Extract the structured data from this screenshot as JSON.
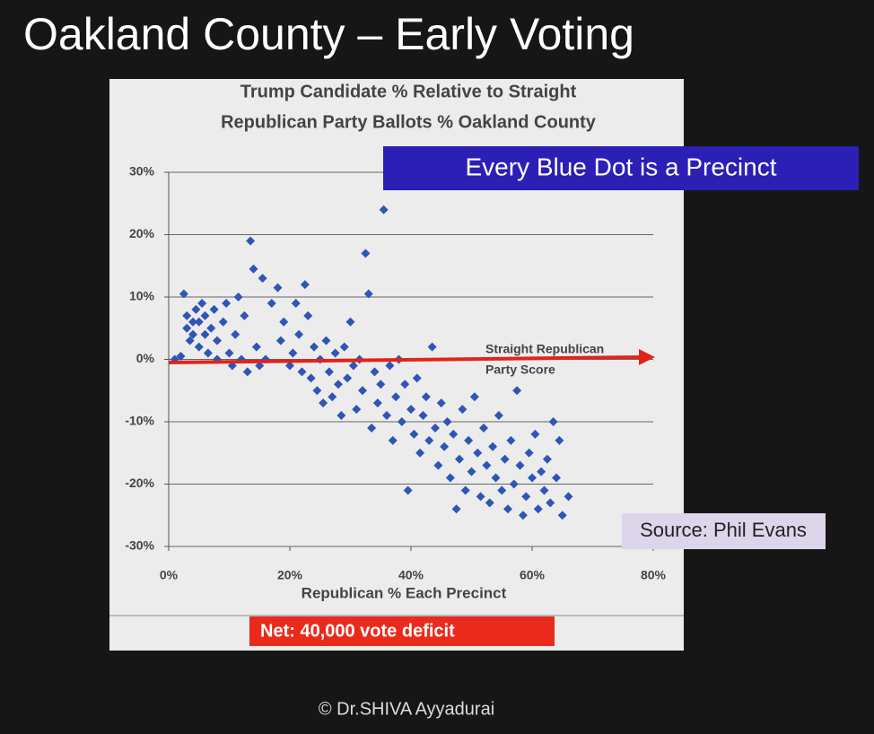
{
  "slide_title": "Oakland County – Early Voting",
  "callout": "Every Blue Dot is a Precinct",
  "source": "Source: Phil Evans",
  "net": "Net:  40,000 vote deficit",
  "footer": "© Dr.SHIVA Ayyadurai",
  "chart_data": {
    "type": "scatter",
    "title": [
      "Trump Candidate % Relative to Straight",
      "Republican Party Ballots % Oakland County"
    ],
    "x_label": "Republican % Each Precinct",
    "arrow_label": [
      "Straight Republican",
      "Party Score"
    ],
    "color": "#2f55b5",
    "grid": true,
    "xlim": [
      0,
      80
    ],
    "xticks": [
      {
        "value": 0,
        "label": "0%"
      },
      {
        "value": 20,
        "label": "20%"
      },
      {
        "value": 40,
        "label": "40%"
      },
      {
        "value": 60,
        "label": "60%"
      },
      {
        "value": 80,
        "label": "80%"
      }
    ],
    "ylim": [
      -30,
      30
    ],
    "yticks": [
      {
        "value": -30,
        "label": "-30%"
      },
      {
        "value": -20,
        "label": "-20%"
      },
      {
        "value": -10,
        "label": "-10%"
      },
      {
        "value": 0,
        "label": "0%"
      },
      {
        "value": 10,
        "label": "10%"
      },
      {
        "value": 20,
        "label": "20%"
      },
      {
        "value": 30,
        "label": "30%"
      }
    ],
    "x": [
      1,
      2,
      2.5,
      3,
      3,
      3.5,
      4,
      4,
      4.5,
      5,
      5,
      5.5,
      6,
      6,
      6.5,
      7,
      7.5,
      8,
      8,
      9,
      9.5,
      10,
      10.5,
      11,
      11.5,
      12,
      12.5,
      13,
      13.5,
      14,
      14.5,
      15,
      15.5,
      16,
      17,
      18,
      18.5,
      19,
      20,
      20.5,
      21,
      21.5,
      22,
      22.5,
      23,
      23.5,
      24,
      24.5,
      25,
      25.5,
      26,
      26.5,
      27,
      27.5,
      28,
      28.5,
      29,
      29.5,
      30,
      30.5,
      31,
      31.5,
      32,
      32.5,
      33,
      33.5,
      34,
      34.5,
      35,
      35.5,
      36,
      36.5,
      37,
      37.5,
      38,
      38.5,
      39,
      39.5,
      40,
      40.5,
      41,
      41.5,
      42,
      42.5,
      43,
      43.5,
      44,
      44.5,
      45,
      45.5,
      46,
      46.5,
      47,
      47.5,
      48,
      48.5,
      49,
      49.5,
      50,
      50.5,
      51,
      51.5,
      52,
      52.5,
      53,
      53.5,
      54,
      54.5,
      55,
      55.5,
      56,
      56.5,
      57,
      57.5,
      58,
      58.5,
      59,
      59.5,
      60,
      60.5,
      61,
      61.5,
      62,
      62.5,
      63,
      63.5,
      64,
      64.5,
      65,
      66
    ],
    "values": [
      0,
      0.5,
      10.5,
      5,
      7,
      3,
      6,
      4,
      8,
      2,
      6,
      9,
      4,
      7,
      1,
      5,
      8,
      3,
      0,
      6,
      9,
      1,
      -1,
      4,
      10,
      0,
      7,
      -2,
      19,
      14.5,
      2,
      -1,
      13,
      0,
      9,
      11.5,
      3,
      6,
      -1,
      1,
      9,
      4,
      -2,
      12,
      7,
      -3,
      2,
      -5,
      0,
      -7,
      3,
      -2,
      -6,
      1,
      -4,
      -9,
      2,
      -3,
      6,
      -1,
      -8,
      0,
      -5,
      17,
      10.5,
      -11,
      -2,
      -7,
      -4,
      24,
      -9,
      -1,
      -13,
      -6,
      0,
      -10,
      -4,
      -21,
      -8,
      -12,
      -3,
      -15,
      -9,
      -6,
      -13,
      2,
      -11,
      -17,
      -7,
      -14,
      -10,
      -19,
      -12,
      -24,
      -16,
      -8,
      -21,
      -13,
      -18,
      -6,
      -15,
      -22,
      -11,
      -17,
      -23,
      -14,
      -19,
      -9,
      -21,
      -16,
      -24,
      -13,
      -20,
      -5,
      -17,
      -25,
      -22,
      -15,
      -19,
      -12,
      -24,
      -18,
      -21,
      -16,
      -23,
      -10,
      -19,
      -13,
      -25,
      -22
    ]
  }
}
